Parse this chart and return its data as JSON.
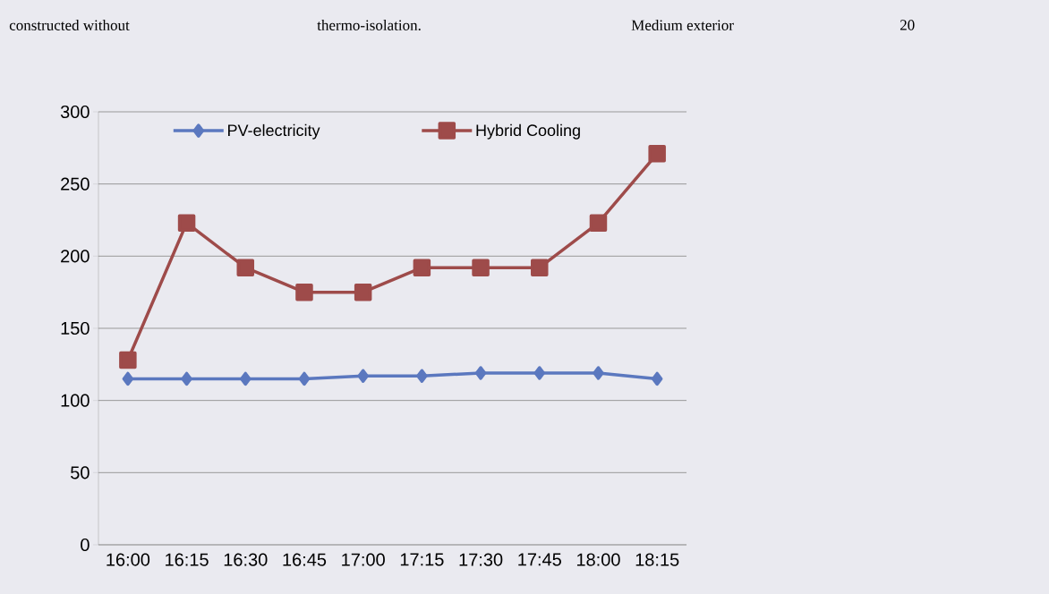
{
  "chart_data": {
    "type": "line",
    "categories": [
      "16:00",
      "16:15",
      "16:30",
      "16:45",
      "17:00",
      "17:15",
      "17:30",
      "17:45",
      "18:00",
      "18:15"
    ],
    "series": [
      {
        "name": "PV-electricity",
        "color": "#5b78bf",
        "marker": "diamond",
        "values": [
          115,
          115,
          115,
          115,
          117,
          117,
          119,
          119,
          119,
          115
        ]
      },
      {
        "name": "Hybrid Cooling",
        "color": "#9e4b4a",
        "marker": "square",
        "values": [
          128,
          223,
          192,
          175,
          175,
          192,
          192,
          192,
          223,
          271
        ]
      }
    ],
    "ylim": [
      0,
      300
    ],
    "yticks": [
      0,
      50,
      100,
      150,
      200,
      250,
      300
    ],
    "grid": "y",
    "legend": "top",
    "line_style": "solid",
    "annotations": [
      "constructed without",
      "thermo-isolation.",
      "Medium exterior",
      "20"
    ]
  }
}
